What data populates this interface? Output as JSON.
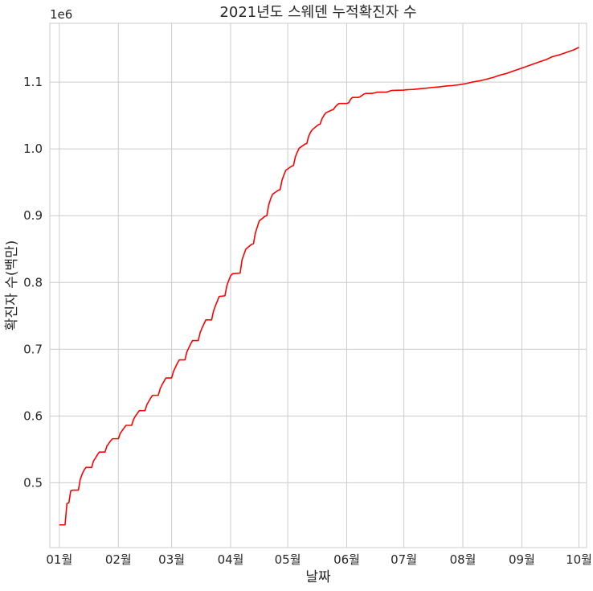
{
  "chart_data": {
    "type": "line",
    "title": "2021년도 스웨덴 누적확진자 수",
    "xlabel": "날짜",
    "ylabel": "확진자 수(백만)",
    "y_offset_label": "1e6",
    "grid": true,
    "line_color": "#ff0000",
    "grid_color": "#cccccc",
    "xlim": [
      "2020-12-27",
      "2021-10-05"
    ],
    "ylim": [
      403000,
      1188000
    ],
    "x_ticks": [
      {
        "date": "2021-01-01",
        "label": "01월"
      },
      {
        "date": "2021-02-01",
        "label": "02월"
      },
      {
        "date": "2021-03-01",
        "label": "03월"
      },
      {
        "date": "2021-04-01",
        "label": "04월"
      },
      {
        "date": "2021-05-01",
        "label": "05월"
      },
      {
        "date": "2021-06-01",
        "label": "06월"
      },
      {
        "date": "2021-07-01",
        "label": "07월"
      },
      {
        "date": "2021-08-01",
        "label": "08월"
      },
      {
        "date": "2021-09-01",
        "label": "09월"
      },
      {
        "date": "2021-10-01",
        "label": "10월"
      }
    ],
    "y_ticks": [
      {
        "value": 500000,
        "label": "0.5"
      },
      {
        "value": 600000,
        "label": "0.6"
      },
      {
        "value": 700000,
        "label": "0.7"
      },
      {
        "value": 800000,
        "label": "0.8"
      },
      {
        "value": 900000,
        "label": "0.9"
      },
      {
        "value": 1000000,
        "label": "1.0"
      },
      {
        "value": 1100000,
        "label": "1.1"
      }
    ],
    "series": [
      {
        "points": [
          [
            "2021-01-01",
            437000
          ],
          [
            "2021-01-04",
            437000
          ],
          [
            "2021-01-05",
            469000
          ],
          [
            "2021-01-06",
            470000
          ],
          [
            "2021-01-07",
            488000
          ],
          [
            "2021-01-08",
            489000
          ],
          [
            "2021-01-11",
            489000
          ],
          [
            "2021-01-12",
            505000
          ],
          [
            "2021-01-13",
            513000
          ],
          [
            "2021-01-14",
            519000
          ],
          [
            "2021-01-15",
            523000
          ],
          [
            "2021-01-18",
            523000
          ],
          [
            "2021-01-19",
            533000
          ],
          [
            "2021-01-20",
            537000
          ],
          [
            "2021-01-21",
            542000
          ],
          [
            "2021-01-22",
            546000
          ],
          [
            "2021-01-25",
            546000
          ],
          [
            "2021-01-26",
            555000
          ],
          [
            "2021-01-27",
            559000
          ],
          [
            "2021-01-28",
            563000
          ],
          [
            "2021-01-29",
            566000
          ],
          [
            "2021-02-01",
            566000
          ],
          [
            "2021-02-02",
            574000
          ],
          [
            "2021-02-03",
            578000
          ],
          [
            "2021-02-04",
            582000
          ],
          [
            "2021-02-05",
            586000
          ],
          [
            "2021-02-08",
            586000
          ],
          [
            "2021-02-09",
            595000
          ],
          [
            "2021-02-10",
            600000
          ],
          [
            "2021-02-11",
            604000
          ],
          [
            "2021-02-12",
            608000
          ],
          [
            "2021-02-15",
            608000
          ],
          [
            "2021-02-16",
            617000
          ],
          [
            "2021-02-17",
            622000
          ],
          [
            "2021-02-18",
            627000
          ],
          [
            "2021-02-19",
            631000
          ],
          [
            "2021-02-22",
            631000
          ],
          [
            "2021-02-23",
            641000
          ],
          [
            "2021-02-24",
            647000
          ],
          [
            "2021-02-25",
            652000
          ],
          [
            "2021-02-26",
            657000
          ],
          [
            "2021-03-01",
            657000
          ],
          [
            "2021-03-02",
            667000
          ],
          [
            "2021-03-03",
            673000
          ],
          [
            "2021-03-04",
            679000
          ],
          [
            "2021-03-05",
            684000
          ],
          [
            "2021-03-08",
            684000
          ],
          [
            "2021-03-09",
            696000
          ],
          [
            "2021-03-10",
            702000
          ],
          [
            "2021-03-11",
            708000
          ],
          [
            "2021-03-12",
            713000
          ],
          [
            "2021-03-15",
            713000
          ],
          [
            "2021-03-16",
            725000
          ],
          [
            "2021-03-17",
            732000
          ],
          [
            "2021-03-18",
            738000
          ],
          [
            "2021-03-19",
            744000
          ],
          [
            "2021-03-22",
            744000
          ],
          [
            "2021-03-23",
            757000
          ],
          [
            "2021-03-24",
            765000
          ],
          [
            "2021-03-25",
            772000
          ],
          [
            "2021-03-26",
            779000
          ],
          [
            "2021-03-29",
            780000
          ],
          [
            "2021-03-30",
            795000
          ],
          [
            "2021-03-31",
            803000
          ],
          [
            "2021-04-01",
            810000
          ],
          [
            "2021-04-02",
            813000
          ],
          [
            "2021-04-06",
            814000
          ],
          [
            "2021-04-07",
            834000
          ],
          [
            "2021-04-08",
            842000
          ],
          [
            "2021-04-09",
            850000
          ],
          [
            "2021-04-12",
            857000
          ],
          [
            "2021-04-13",
            858000
          ],
          [
            "2021-04-14",
            874000
          ],
          [
            "2021-04-15",
            883000
          ],
          [
            "2021-04-16",
            892000
          ],
          [
            "2021-04-19",
            899000
          ],
          [
            "2021-04-20",
            900000
          ],
          [
            "2021-04-21",
            916000
          ],
          [
            "2021-04-22",
            925000
          ],
          [
            "2021-04-23",
            932000
          ],
          [
            "2021-04-26",
            938000
          ],
          [
            "2021-04-27",
            939000
          ],
          [
            "2021-04-28",
            953000
          ],
          [
            "2021-04-29",
            961000
          ],
          [
            "2021-04-30",
            968000
          ],
          [
            "2021-05-03",
            974000
          ],
          [
            "2021-05-04",
            975000
          ],
          [
            "2021-05-05",
            988000
          ],
          [
            "2021-05-06",
            995000
          ],
          [
            "2021-05-07",
            1001000
          ],
          [
            "2021-05-10",
            1007000
          ],
          [
            "2021-05-11",
            1008000
          ],
          [
            "2021-05-12",
            1019000
          ],
          [
            "2021-05-13",
            1025000
          ],
          [
            "2021-05-14",
            1029000
          ],
          [
            "2021-05-17",
            1036000
          ],
          [
            "2021-05-18",
            1037000
          ],
          [
            "2021-05-19",
            1045000
          ],
          [
            "2021-05-20",
            1050000
          ],
          [
            "2021-05-21",
            1054000
          ],
          [
            "2021-05-24",
            1058000
          ],
          [
            "2021-05-25",
            1059000
          ],
          [
            "2021-05-26",
            1063000
          ],
          [
            "2021-05-27",
            1066000
          ],
          [
            "2021-05-28",
            1068000
          ],
          [
            "2021-06-01",
            1068000
          ],
          [
            "2021-06-02",
            1069000
          ],
          [
            "2021-06-03",
            1074000
          ],
          [
            "2021-06-04",
            1077000
          ],
          [
            "2021-06-07",
            1077000
          ],
          [
            "2021-06-08",
            1078000
          ],
          [
            "2021-06-09",
            1080000
          ],
          [
            "2021-06-10",
            1082000
          ],
          [
            "2021-06-11",
            1083000
          ],
          [
            "2021-06-14",
            1083000
          ],
          [
            "2021-06-15",
            1083500
          ],
          [
            "2021-06-16",
            1084000
          ],
          [
            "2021-06-17",
            1085000
          ],
          [
            "2021-06-18",
            1085000
          ],
          [
            "2021-06-22",
            1085000
          ],
          [
            "2021-06-23",
            1086000
          ],
          [
            "2021-06-24",
            1087000
          ],
          [
            "2021-06-25",
            1087500
          ],
          [
            "2021-07-01",
            1088000
          ],
          [
            "2021-07-02",
            1088500
          ],
          [
            "2021-07-06",
            1089000
          ],
          [
            "2021-07-09",
            1090000
          ],
          [
            "2021-07-13",
            1091000
          ],
          [
            "2021-07-16",
            1092000
          ],
          [
            "2021-07-20",
            1093000
          ],
          [
            "2021-07-23",
            1094000
          ],
          [
            "2021-07-27",
            1095000
          ],
          [
            "2021-07-30",
            1096000
          ],
          [
            "2021-08-03",
            1098000
          ],
          [
            "2021-08-06",
            1100000
          ],
          [
            "2021-08-10",
            1102000
          ],
          [
            "2021-08-13",
            1104000
          ],
          [
            "2021-08-17",
            1107000
          ],
          [
            "2021-08-20",
            1110000
          ],
          [
            "2021-08-24",
            1113000
          ],
          [
            "2021-08-27",
            1116000
          ],
          [
            "2021-08-31",
            1120000
          ],
          [
            "2021-09-03",
            1123000
          ],
          [
            "2021-09-07",
            1127000
          ],
          [
            "2021-09-10",
            1130000
          ],
          [
            "2021-09-14",
            1134000
          ],
          [
            "2021-09-17",
            1138000
          ],
          [
            "2021-09-21",
            1141000
          ],
          [
            "2021-09-24",
            1144000
          ],
          [
            "2021-09-28",
            1148000
          ],
          [
            "2021-10-01",
            1152000
          ]
        ]
      }
    ]
  }
}
